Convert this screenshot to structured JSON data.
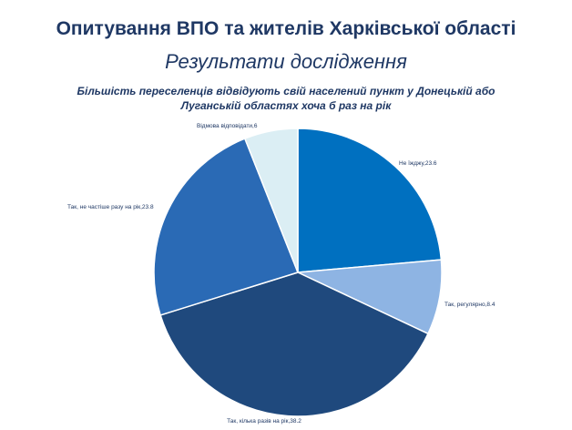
{
  "slide": {
    "title": "Опитування ВПО та жителів Харківської області",
    "subtitle": "Результати дослідження",
    "caption_line1": "Більшість переселенців відвідують свій населений пункт у Донецькій або",
    "caption_line2": "Луганській областях хоча б раз на рік"
  },
  "chart_data": {
    "type": "pie",
    "slices": [
      {
        "label": "Не їжджу",
        "value": 23.6,
        "text": "Не їжджу,23.6",
        "color": "#0070c0"
      },
      {
        "label": "Так, регулярно",
        "value": 8.4,
        "text": "Так, регулярно,8.4",
        "color": "#8eb4e3"
      },
      {
        "label": "Так, кілька разів на рік",
        "value": 38.2,
        "text": "Так, кілька разів на рік,38.2",
        "color": "#1f497d"
      },
      {
        "label": "Так, не частіше разу на рік",
        "value": 23.8,
        "text": "Так, не частіше разу на рік,23.8",
        "color": "#2a6ab5"
      },
      {
        "label": "Відмова відповідати",
        "value": 6,
        "text": "Відмова відповідати,6",
        "color": "#dbeef4"
      }
    ]
  }
}
